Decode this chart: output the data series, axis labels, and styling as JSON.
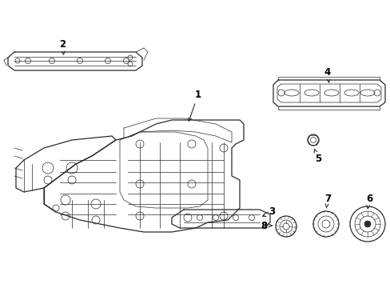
{
  "background_color": "#ffffff",
  "line_color": "#2a2a2a",
  "label_color": "#000000",
  "fig_width": 4.89,
  "fig_height": 3.6,
  "dpi": 100,
  "lw_main": 0.9,
  "lw_thin": 0.5,
  "lw_thick": 1.2,
  "label_fontsize": 8.5,
  "arrow_lw": 0.7,
  "arrow_ms": 7
}
